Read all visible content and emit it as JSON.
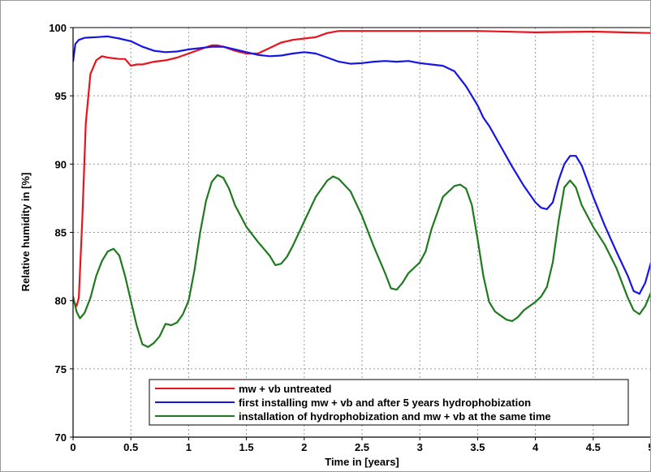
{
  "chart_data": {
    "type": "line",
    "xlabel": "Time in [years]",
    "ylabel": "Relative humidity in [%]",
    "xlim": [
      0,
      5
    ],
    "ylim": [
      70,
      100
    ],
    "xticks": [
      "0",
      "0.5",
      "1",
      "1.5",
      "2",
      "2.5",
      "3",
      "3.5",
      "4",
      "4.5",
      "5"
    ],
    "yticks": [
      "70",
      "75",
      "80",
      "85",
      "90",
      "95",
      "100"
    ],
    "grid": true,
    "legend_position": "bottom-right",
    "series": [
      {
        "name": "mw + vb untreated",
        "color": "#e8141c",
        "points": [
          [
            0,
            80.0
          ],
          [
            0.03,
            79.6
          ],
          [
            0.05,
            80.2
          ],
          [
            0.08,
            86.0
          ],
          [
            0.11,
            93.0
          ],
          [
            0.15,
            96.6
          ],
          [
            0.2,
            97.6
          ],
          [
            0.25,
            97.9
          ],
          [
            0.3,
            97.8
          ],
          [
            0.4,
            97.7
          ],
          [
            0.45,
            97.7
          ],
          [
            0.5,
            97.2
          ],
          [
            0.55,
            97.3
          ],
          [
            0.6,
            97.3
          ],
          [
            0.7,
            97.5
          ],
          [
            0.8,
            97.6
          ],
          [
            0.9,
            97.8
          ],
          [
            1.0,
            98.1
          ],
          [
            1.1,
            98.4
          ],
          [
            1.2,
            98.7
          ],
          [
            1.25,
            98.7
          ],
          [
            1.3,
            98.6
          ],
          [
            1.4,
            98.3
          ],
          [
            1.5,
            98.1
          ],
          [
            1.6,
            98.1
          ],
          [
            1.7,
            98.5
          ],
          [
            1.8,
            98.9
          ],
          [
            1.9,
            99.1
          ],
          [
            2.0,
            99.2
          ],
          [
            2.1,
            99.3
          ],
          [
            2.2,
            99.6
          ],
          [
            2.3,
            99.75
          ],
          [
            2.5,
            99.75
          ],
          [
            3.0,
            99.75
          ],
          [
            3.5,
            99.75
          ],
          [
            4.0,
            99.65
          ],
          [
            4.5,
            99.7
          ],
          [
            5.0,
            99.6
          ]
        ]
      },
      {
        "name": "first installing mw + vb and after 5 years hydrophobization",
        "color": "#1515e6",
        "points": [
          [
            0,
            97.5
          ],
          [
            0.02,
            98.8
          ],
          [
            0.05,
            99.1
          ],
          [
            0.1,
            99.25
          ],
          [
            0.2,
            99.3
          ],
          [
            0.3,
            99.35
          ],
          [
            0.4,
            99.2
          ],
          [
            0.5,
            99.0
          ],
          [
            0.6,
            98.6
          ],
          [
            0.7,
            98.3
          ],
          [
            0.8,
            98.2
          ],
          [
            0.9,
            98.25
          ],
          [
            1.0,
            98.4
          ],
          [
            1.1,
            98.5
          ],
          [
            1.2,
            98.6
          ],
          [
            1.3,
            98.6
          ],
          [
            1.4,
            98.4
          ],
          [
            1.5,
            98.2
          ],
          [
            1.6,
            98.0
          ],
          [
            1.7,
            97.9
          ],
          [
            1.8,
            97.95
          ],
          [
            1.9,
            98.1
          ],
          [
            2.0,
            98.2
          ],
          [
            2.1,
            98.1
          ],
          [
            2.2,
            97.8
          ],
          [
            2.3,
            97.5
          ],
          [
            2.4,
            97.35
          ],
          [
            2.5,
            97.4
          ],
          [
            2.6,
            97.5
          ],
          [
            2.7,
            97.55
          ],
          [
            2.8,
            97.5
          ],
          [
            2.9,
            97.55
          ],
          [
            3.0,
            97.4
          ],
          [
            3.1,
            97.3
          ],
          [
            3.2,
            97.2
          ],
          [
            3.3,
            96.8
          ],
          [
            3.4,
            95.7
          ],
          [
            3.5,
            94.3
          ],
          [
            3.55,
            93.4
          ],
          [
            3.6,
            92.8
          ],
          [
            3.7,
            91.3
          ],
          [
            3.8,
            89.8
          ],
          [
            3.9,
            88.4
          ],
          [
            4.0,
            87.2
          ],
          [
            4.05,
            86.8
          ],
          [
            4.1,
            86.7
          ],
          [
            4.15,
            87.2
          ],
          [
            4.2,
            88.8
          ],
          [
            4.25,
            90.0
          ],
          [
            4.3,
            90.6
          ],
          [
            4.35,
            90.6
          ],
          [
            4.4,
            89.9
          ],
          [
            4.5,
            87.6
          ],
          [
            4.6,
            85.5
          ],
          [
            4.7,
            83.6
          ],
          [
            4.8,
            81.8
          ],
          [
            4.85,
            80.7
          ],
          [
            4.9,
            80.5
          ],
          [
            4.95,
            81.3
          ],
          [
            5.0,
            82.8
          ]
        ]
      },
      {
        "name": "installation of hydrophobization and mw + vb at the same time",
        "color": "#1f7a1f",
        "points": [
          [
            0,
            80.3
          ],
          [
            0.03,
            79.2
          ],
          [
            0.06,
            78.7
          ],
          [
            0.1,
            79.1
          ],
          [
            0.15,
            80.2
          ],
          [
            0.2,
            81.8
          ],
          [
            0.25,
            82.9
          ],
          [
            0.3,
            83.6
          ],
          [
            0.35,
            83.8
          ],
          [
            0.4,
            83.3
          ],
          [
            0.45,
            81.8
          ],
          [
            0.5,
            80.0
          ],
          [
            0.55,
            78.2
          ],
          [
            0.6,
            76.8
          ],
          [
            0.65,
            76.6
          ],
          [
            0.7,
            76.9
          ],
          [
            0.75,
            77.4
          ],
          [
            0.8,
            78.3
          ],
          [
            0.85,
            78.2
          ],
          [
            0.9,
            78.4
          ],
          [
            0.95,
            79.0
          ],
          [
            1.0,
            80.0
          ],
          [
            1.05,
            82.2
          ],
          [
            1.1,
            85.0
          ],
          [
            1.15,
            87.3
          ],
          [
            1.2,
            88.7
          ],
          [
            1.25,
            89.2
          ],
          [
            1.3,
            89.0
          ],
          [
            1.35,
            88.2
          ],
          [
            1.4,
            87.0
          ],
          [
            1.5,
            85.4
          ],
          [
            1.6,
            84.3
          ],
          [
            1.7,
            83.3
          ],
          [
            1.75,
            82.6
          ],
          [
            1.8,
            82.7
          ],
          [
            1.85,
            83.2
          ],
          [
            1.9,
            84.0
          ],
          [
            2.0,
            85.8
          ],
          [
            2.1,
            87.6
          ],
          [
            2.2,
            88.8
          ],
          [
            2.25,
            89.1
          ],
          [
            2.3,
            88.9
          ],
          [
            2.4,
            88.0
          ],
          [
            2.5,
            86.2
          ],
          [
            2.6,
            84.0
          ],
          [
            2.7,
            82.0
          ],
          [
            2.75,
            80.9
          ],
          [
            2.8,
            80.8
          ],
          [
            2.85,
            81.3
          ],
          [
            2.9,
            82.0
          ],
          [
            3.0,
            82.8
          ],
          [
            3.05,
            83.6
          ],
          [
            3.1,
            85.2
          ],
          [
            3.2,
            87.6
          ],
          [
            3.3,
            88.4
          ],
          [
            3.35,
            88.5
          ],
          [
            3.4,
            88.2
          ],
          [
            3.45,
            87.0
          ],
          [
            3.5,
            84.5
          ],
          [
            3.55,
            81.8
          ],
          [
            3.6,
            79.9
          ],
          [
            3.65,
            79.2
          ],
          [
            3.7,
            78.9
          ],
          [
            3.75,
            78.6
          ],
          [
            3.8,
            78.5
          ],
          [
            3.85,
            78.8
          ],
          [
            3.9,
            79.3
          ],
          [
            4.0,
            79.9
          ],
          [
            4.05,
            80.3
          ],
          [
            4.1,
            81.0
          ],
          [
            4.15,
            82.8
          ],
          [
            4.2,
            85.8
          ],
          [
            4.25,
            88.3
          ],
          [
            4.3,
            88.8
          ],
          [
            4.35,
            88.3
          ],
          [
            4.4,
            87.0
          ],
          [
            4.5,
            85.4
          ],
          [
            4.6,
            84.1
          ],
          [
            4.7,
            82.4
          ],
          [
            4.8,
            80.2
          ],
          [
            4.85,
            79.3
          ],
          [
            4.9,
            79.0
          ],
          [
            4.95,
            79.6
          ],
          [
            5.0,
            80.6
          ]
        ]
      }
    ]
  }
}
